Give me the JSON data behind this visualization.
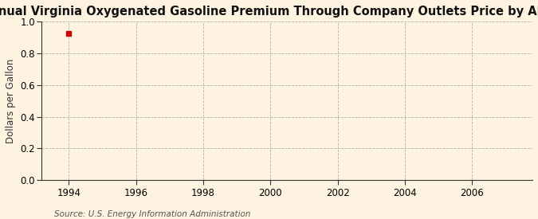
{
  "title": "Annual Virginia Oxygenated Gasoline Premium Through Company Outlets Price by All Sellers",
  "ylabel": "Dollars per Gallon",
  "source": "Source: U.S. Energy Information Administration",
  "background_color": "#fdf3e0",
  "plot_bg_color": "#fdf3e0",
  "data_x": [
    1994.0
  ],
  "data_y": [
    0.924
  ],
  "data_color": "#cc0000",
  "xlim": [
    1993.2,
    2007.8
  ],
  "ylim": [
    0.0,
    1.0
  ],
  "xticks": [
    1994,
    1996,
    1998,
    2000,
    2002,
    2004,
    2006
  ],
  "yticks": [
    0.0,
    0.2,
    0.4,
    0.6,
    0.8,
    1.0
  ],
  "title_fontsize": 10.5,
  "axis_fontsize": 8.5,
  "tick_fontsize": 8.5,
  "source_fontsize": 7.5,
  "grid_color": "#aaaaaa",
  "grid_linestyle": "--",
  "grid_linewidth": 0.6,
  "spine_color": "#333333",
  "marker_size": 4
}
